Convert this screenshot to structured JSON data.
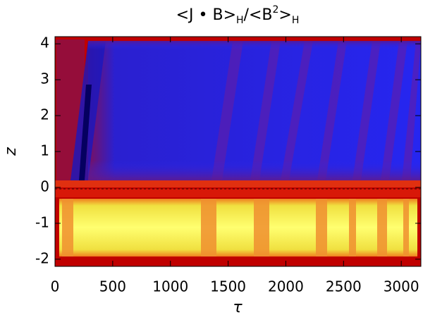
{
  "chart_data": {
    "type": "heatmap",
    "title": [
      "<J • B>",
      "H",
      "/<B",
      "2",
      ">",
      "H"
    ],
    "x_label": "τ",
    "y_label": "z",
    "xlim": [
      0,
      3170
    ],
    "xticks": [
      0,
      500,
      1000,
      1500,
      2000,
      2500,
      3000
    ],
    "ylim": [
      -2.2,
      4.2
    ],
    "yticks": [
      -2,
      -1,
      0,
      1,
      2,
      3,
      4
    ]
  }
}
